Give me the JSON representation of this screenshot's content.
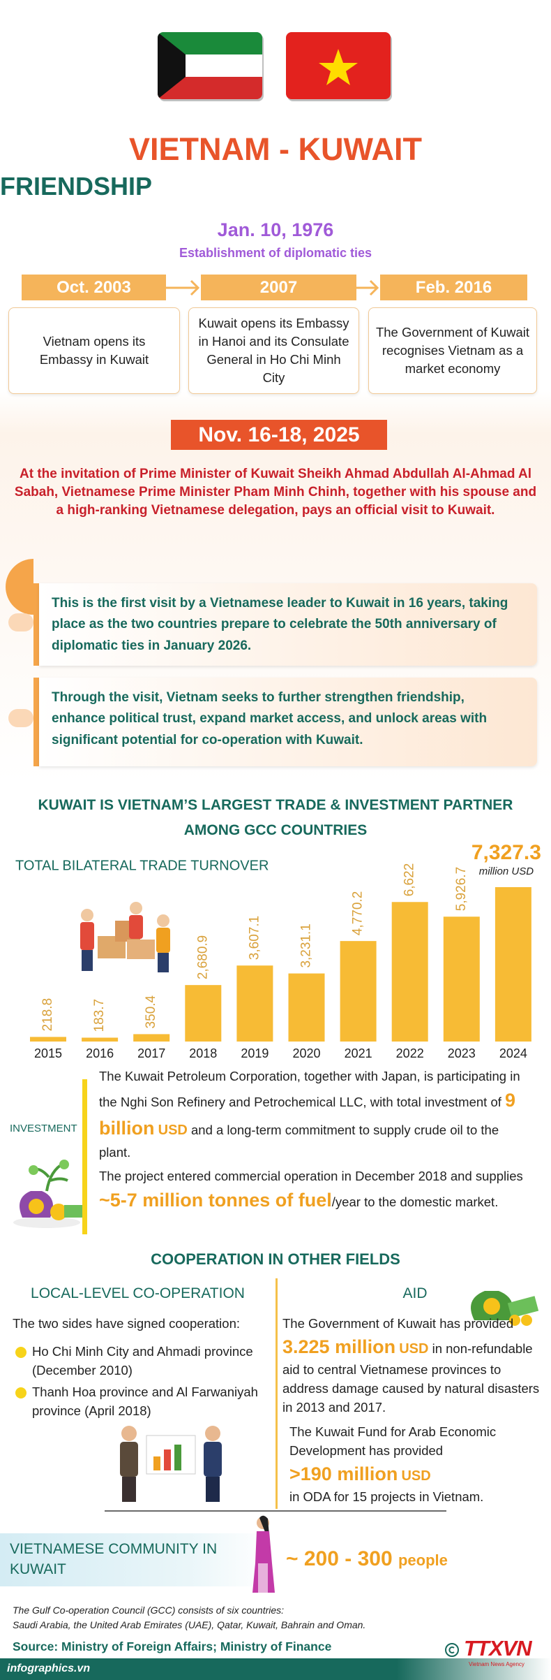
{
  "header": {
    "title": "VIETNAM - KUWAIT",
    "subtitle": "FRIENDSHIP",
    "date": "Jan. 10, 1976",
    "date_caption": "Establishment of diplomatic ties"
  },
  "timeline": [
    {
      "date": "Oct. 2003",
      "text": "Vietnam opens its Embassy in Kuwait"
    },
    {
      "date": "2007",
      "text": "Kuwait opens its Embassy in Hanoi and its Consulate General in Ho Chi Minh City"
    },
    {
      "date": "Feb. 2016",
      "text": "The Government of Kuwait recognises Vietnam as a market economy"
    }
  ],
  "visit": {
    "date": "Nov. 16-18, 2025",
    "intro": "At the invitation of Prime Minister of Kuwait Sheikh Ahmad Abdullah Al-Ahmad Al Sabah, Vietnamese Prime Minister Pham Minh Chinh, together with his spouse and a high-ranking Vietnamese delegation, pays an official visit to Kuwait.",
    "points": [
      "This is the first visit by a Vietnamese leader to Kuwait in 16 years, taking place as the two countries prepare to celebrate the 50th anniversary of diplomatic ties in January 2026.",
      "Through the visit, Vietnam seeks to further strengthen friendship, enhance political trust, expand market access, and unlock areas with significant potential for co-operation with Kuwait."
    ]
  },
  "trade": {
    "heading": "KUWAIT IS VIETNAM’S LARGEST TRADE & INVESTMENT PARTNER AMONG GCC COUNTRIES"
  },
  "chart_data": {
    "type": "bar",
    "title": "TOTAL BILATERAL TRADE TURNOVER",
    "unit": "million USD",
    "categories": [
      "2015",
      "2016",
      "2017",
      "2018",
      "2019",
      "2020",
      "2021",
      "2022",
      "2023",
      "2024"
    ],
    "values": [
      218.8,
      183.7,
      350.4,
      2680.9,
      3607.1,
      3231.1,
      4770.2,
      6622,
      5926.7,
      7327.3
    ],
    "value_labels": [
      "218.8",
      "183.7",
      "350.4",
      "2,680.9",
      "3,607.1",
      "3,231.1",
      "4,770.2",
      "6,622",
      "5,926.7",
      "7,327.3"
    ],
    "color": "#f7bb35"
  },
  "investment": {
    "label": "INVESTMENT",
    "p1": [
      "The Kuwait Petroleum Corporation, together with Japan, is participating in the Nghi Son Refinery and Petrochemical LLC, with total investment of",
      "9 billion",
      "USD",
      "and a long-term commitment to supply crude oil to the plant."
    ],
    "p2": [
      "The project entered commercial operation in December 2018 and supplies",
      "~5-7 million tonnes of fuel",
      "/year to the domestic market."
    ]
  },
  "cooperation": {
    "heading": "COOPERATION IN OTHER FIELDS",
    "local": {
      "title": "LOCAL-LEVEL CO-OPERATION",
      "intro": "The two sides have signed cooperation:",
      "items": [
        "Ho Chi Minh City and Ahmadi province (December 2010)",
        "Thanh Hoa province and Al Farwaniyah province (April 2018)"
      ]
    },
    "aid": {
      "title": "AID",
      "p1": [
        "The Government of Kuwait has provided",
        "3.225 million",
        "USD",
        "in non-refundable aid to central Vietnamese provinces to address damage caused by natural disasters in 2013 and 2017."
      ],
      "p2": [
        "The Kuwait Fund for Arab Economic Development has provided",
        ">190 million",
        "USD",
        "in ODA for 15 projects in Vietnam."
      ]
    }
  },
  "community": {
    "title": "VIETNAMESE COMMUNITY IN KUWAIT",
    "value": "~ 200 - 300",
    "unit": "people"
  },
  "footer": {
    "note_title": "The Gulf Co-operation Council (GCC) consists of six countries:",
    "note": "Saudi Arabia, the United Arab Emirates (UAE), Qatar, Kuwait, Bahrain and Oman.",
    "source": "Source: Ministry of Foreign Affairs; Ministry of Finance",
    "site": "infographics.vn",
    "logo": "TTXVN",
    "logo_caption": "Vietnam News Agency"
  }
}
